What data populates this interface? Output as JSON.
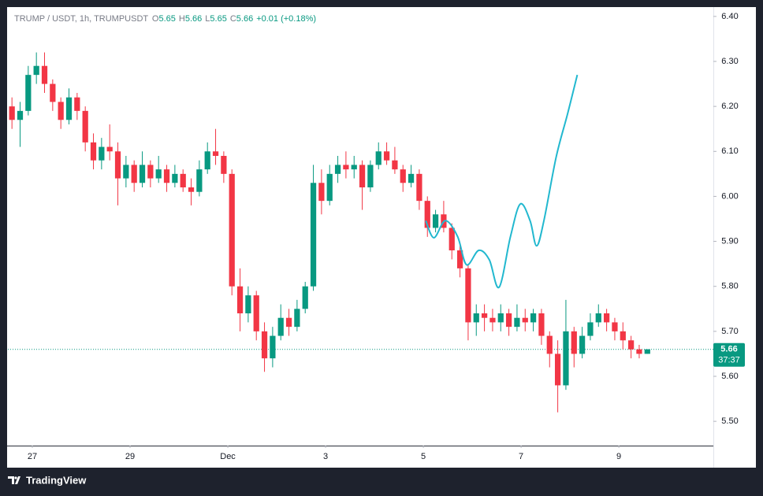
{
  "chart_data": {
    "type": "candlestick",
    "legend": {
      "symbol": "TRUMP / USDT, 1h, TRUMPUSDT",
      "items": [
        {
          "key": "O",
          "value": 5.65
        },
        {
          "key": "H",
          "value": 5.66
        },
        {
          "key": "L",
          "value": 5.65
        },
        {
          "key": "C",
          "value": 5.66
        }
      ],
      "change": "+0.01 (+0.18%)"
    },
    "up_color": "#089981",
    "down_color": "#f23645",
    "candles": [
      [
        6.2,
        6.22,
        6.15,
        6.17
      ],
      [
        6.17,
        6.21,
        6.11,
        6.19
      ],
      [
        6.19,
        6.29,
        6.18,
        6.27
      ],
      [
        6.27,
        6.32,
        6.25,
        6.29
      ],
      [
        6.29,
        6.32,
        6.23,
        6.25
      ],
      [
        6.25,
        6.26,
        6.19,
        6.21
      ],
      [
        6.21,
        6.22,
        6.15,
        6.17
      ],
      [
        6.17,
        6.24,
        6.16,
        6.22
      ],
      [
        6.22,
        6.23,
        6.17,
        6.19
      ],
      [
        6.19,
        6.2,
        6.1,
        6.12
      ],
      [
        6.12,
        6.14,
        6.06,
        6.08
      ],
      [
        6.08,
        6.13,
        6.06,
        6.11
      ],
      [
        6.11,
        6.16,
        6.08,
        6.1
      ],
      [
        6.1,
        6.12,
        5.98,
        6.04
      ],
      [
        6.04,
        6.09,
        6.02,
        6.07
      ],
      [
        6.07,
        6.08,
        6.01,
        6.03
      ],
      [
        6.03,
        6.1,
        6.02,
        6.07
      ],
      [
        6.07,
        6.08,
        6.02,
        6.04
      ],
      [
        6.04,
        6.09,
        6.03,
        6.06
      ],
      [
        6.06,
        6.07,
        6.01,
        6.03
      ],
      [
        6.03,
        6.07,
        6.02,
        6.05
      ],
      [
        6.05,
        6.06,
        6.01,
        6.02
      ],
      [
        6.02,
        6.04,
        5.98,
        6.01
      ],
      [
        6.01,
        6.08,
        6.0,
        6.06
      ],
      [
        6.06,
        6.12,
        6.05,
        6.1
      ],
      [
        6.1,
        6.15,
        6.07,
        6.09
      ],
      [
        6.09,
        6.1,
        6.03,
        6.05
      ],
      [
        6.05,
        6.06,
        5.78,
        5.8
      ],
      [
        5.8,
        5.84,
        5.7,
        5.74
      ],
      [
        5.74,
        5.8,
        5.72,
        5.78
      ],
      [
        5.78,
        5.79,
        5.68,
        5.7
      ],
      [
        5.7,
        5.72,
        5.61,
        5.64
      ],
      [
        5.64,
        5.71,
        5.62,
        5.69
      ],
      [
        5.69,
        5.76,
        5.68,
        5.73
      ],
      [
        5.73,
        5.75,
        5.69,
        5.71
      ],
      [
        5.71,
        5.77,
        5.7,
        5.75
      ],
      [
        5.75,
        5.81,
        5.74,
        5.8
      ],
      [
        5.8,
        6.07,
        5.79,
        6.03
      ],
      [
        6.03,
        6.06,
        5.96,
        5.99
      ],
      [
        5.99,
        6.07,
        5.98,
        6.05
      ],
      [
        6.05,
        6.09,
        6.03,
        6.07
      ],
      [
        6.07,
        6.1,
        6.04,
        6.06
      ],
      [
        6.06,
        6.09,
        6.04,
        6.07
      ],
      [
        6.07,
        6.08,
        5.97,
        6.02
      ],
      [
        6.02,
        6.08,
        6.01,
        6.07
      ],
      [
        6.07,
        6.12,
        6.06,
        6.1
      ],
      [
        6.1,
        6.12,
        6.07,
        6.08
      ],
      [
        6.08,
        6.11,
        6.05,
        6.06
      ],
      [
        6.06,
        6.07,
        6.01,
        6.03
      ],
      [
        6.03,
        6.07,
        6.02,
        6.05
      ],
      [
        6.05,
        6.06,
        5.97,
        5.99
      ],
      [
        5.99,
        6.0,
        5.91,
        5.93
      ],
      [
        5.93,
        5.97,
        5.92,
        5.96
      ],
      [
        5.96,
        5.99,
        5.92,
        5.93
      ],
      [
        5.93,
        5.94,
        5.86,
        5.88
      ],
      [
        5.88,
        5.89,
        5.82,
        5.84
      ],
      [
        5.84,
        5.85,
        5.68,
        5.72
      ],
      [
        5.72,
        5.76,
        5.69,
        5.74
      ],
      [
        5.74,
        5.76,
        5.7,
        5.73
      ],
      [
        5.73,
        5.75,
        5.7,
        5.72
      ],
      [
        5.72,
        5.76,
        5.7,
        5.74
      ],
      [
        5.74,
        5.75,
        5.69,
        5.71
      ],
      [
        5.71,
        5.76,
        5.7,
        5.73
      ],
      [
        5.73,
        5.75,
        5.7,
        5.72
      ],
      [
        5.72,
        5.75,
        5.7,
        5.74
      ],
      [
        5.74,
        5.75,
        5.67,
        5.69
      ],
      [
        5.69,
        5.7,
        5.62,
        5.65
      ],
      [
        5.65,
        5.68,
        5.52,
        5.58
      ],
      [
        5.58,
        5.77,
        5.57,
        5.7
      ],
      [
        5.7,
        5.71,
        5.62,
        5.65
      ],
      [
        5.65,
        5.71,
        5.64,
        5.69
      ],
      [
        5.69,
        5.74,
        5.68,
        5.72
      ],
      [
        5.72,
        5.76,
        5.71,
        5.74
      ],
      [
        5.74,
        5.75,
        5.7,
        5.72
      ],
      [
        5.72,
        5.73,
        5.68,
        5.7
      ],
      [
        5.7,
        5.72,
        5.66,
        5.68
      ],
      [
        5.68,
        5.69,
        5.64,
        5.66
      ],
      [
        5.66,
        5.67,
        5.64,
        5.65
      ],
      [
        5.65,
        5.66,
        5.65,
        5.66
      ]
    ],
    "overlay_line": {
      "color": "#22b8cf",
      "x": [
        51.3,
        52.3,
        53.7,
        55.2,
        56.3,
        57.8,
        59.1,
        60.3,
        61.7,
        62.9,
        64.1,
        64.9,
        65.8,
        67.3,
        68.7,
        69.9
      ],
      "values": [
        5.946,
        5.908,
        5.946,
        5.911,
        5.848,
        5.88,
        5.859,
        5.798,
        5.911,
        5.983,
        5.946,
        5.89,
        5.946,
        6.087,
        6.183,
        6.27
      ]
    },
    "xlim": [
      0,
      86.6
    ],
    "xticks": [
      {
        "value": 3,
        "label": "27"
      },
      {
        "value": 15,
        "label": "29"
      },
      {
        "value": 27,
        "label": "Dec"
      },
      {
        "value": 39,
        "label": "3"
      },
      {
        "value": 51,
        "label": "5"
      },
      {
        "value": 63,
        "label": "7"
      },
      {
        "value": 75,
        "label": "9"
      }
    ],
    "ylim": [
      5.446,
      6.419
    ],
    "yticks": [
      {
        "value": 5.5,
        "label": "5.50"
      },
      {
        "value": 5.6,
        "label": "5.60"
      },
      {
        "value": 5.7,
        "label": "5.70"
      },
      {
        "value": 5.8,
        "label": "5.80"
      },
      {
        "value": 5.9,
        "label": "5.90"
      },
      {
        "value": 6.0,
        "label": "6.00"
      },
      {
        "value": 6.1,
        "label": "6.10"
      },
      {
        "value": 6.2,
        "label": "6.20"
      },
      {
        "value": 6.3,
        "label": "6.30"
      },
      {
        "value": 6.4,
        "label": "6.40"
      }
    ],
    "last_price": {
      "value": 5.66,
      "countdown": "37:37"
    },
    "brand": "TradingView"
  }
}
